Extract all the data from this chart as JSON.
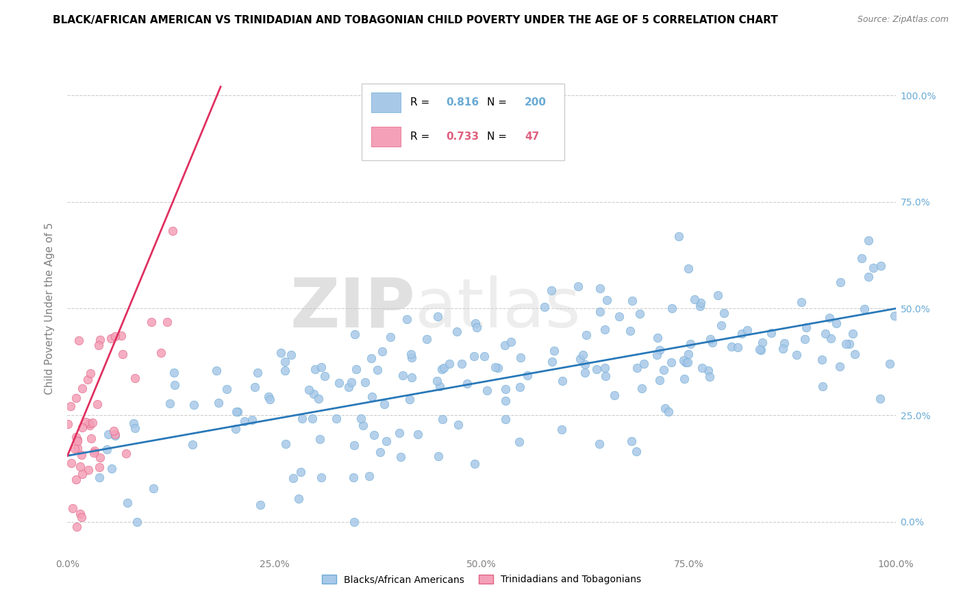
{
  "title": "BLACK/AFRICAN AMERICAN VS TRINIDADIAN AND TOBAGONIAN CHILD POVERTY UNDER THE AGE OF 5 CORRELATION CHART",
  "source": "Source: ZipAtlas.com",
  "ylabel": "Child Poverty Under the Age of 5",
  "blue_R": 0.816,
  "blue_N": 200,
  "pink_R": 0.733,
  "pink_N": 47,
  "blue_color": "#a8c8e8",
  "blue_edge_color": "#6aaad4",
  "pink_color": "#f4a0b8",
  "pink_edge_color": "#e06080",
  "blue_line_color": "#2878b8",
  "pink_line_color": "#e03060",
  "watermark_zip": "ZIP",
  "watermark_atlas": "atlas",
  "legend_labels": [
    "Blacks/African Americans",
    "Trinidadians and Tobagonians"
  ],
  "title_fontsize": 11,
  "source_fontsize": 9,
  "background_color": "#ffffff",
  "grid_color": "#cccccc",
  "right_ytick_labels": [
    "0.0%",
    "25.0%",
    "50.0%",
    "75.0%",
    "100.0%"
  ],
  "right_ytick_values": [
    0.0,
    0.25,
    0.5,
    0.75,
    1.0
  ],
  "xtick_labels": [
    "0.0%",
    "25.0%",
    "50.0%",
    "75.0%",
    "100.0%"
  ],
  "xtick_values": [
    0.0,
    0.25,
    0.5,
    0.75,
    1.0
  ]
}
